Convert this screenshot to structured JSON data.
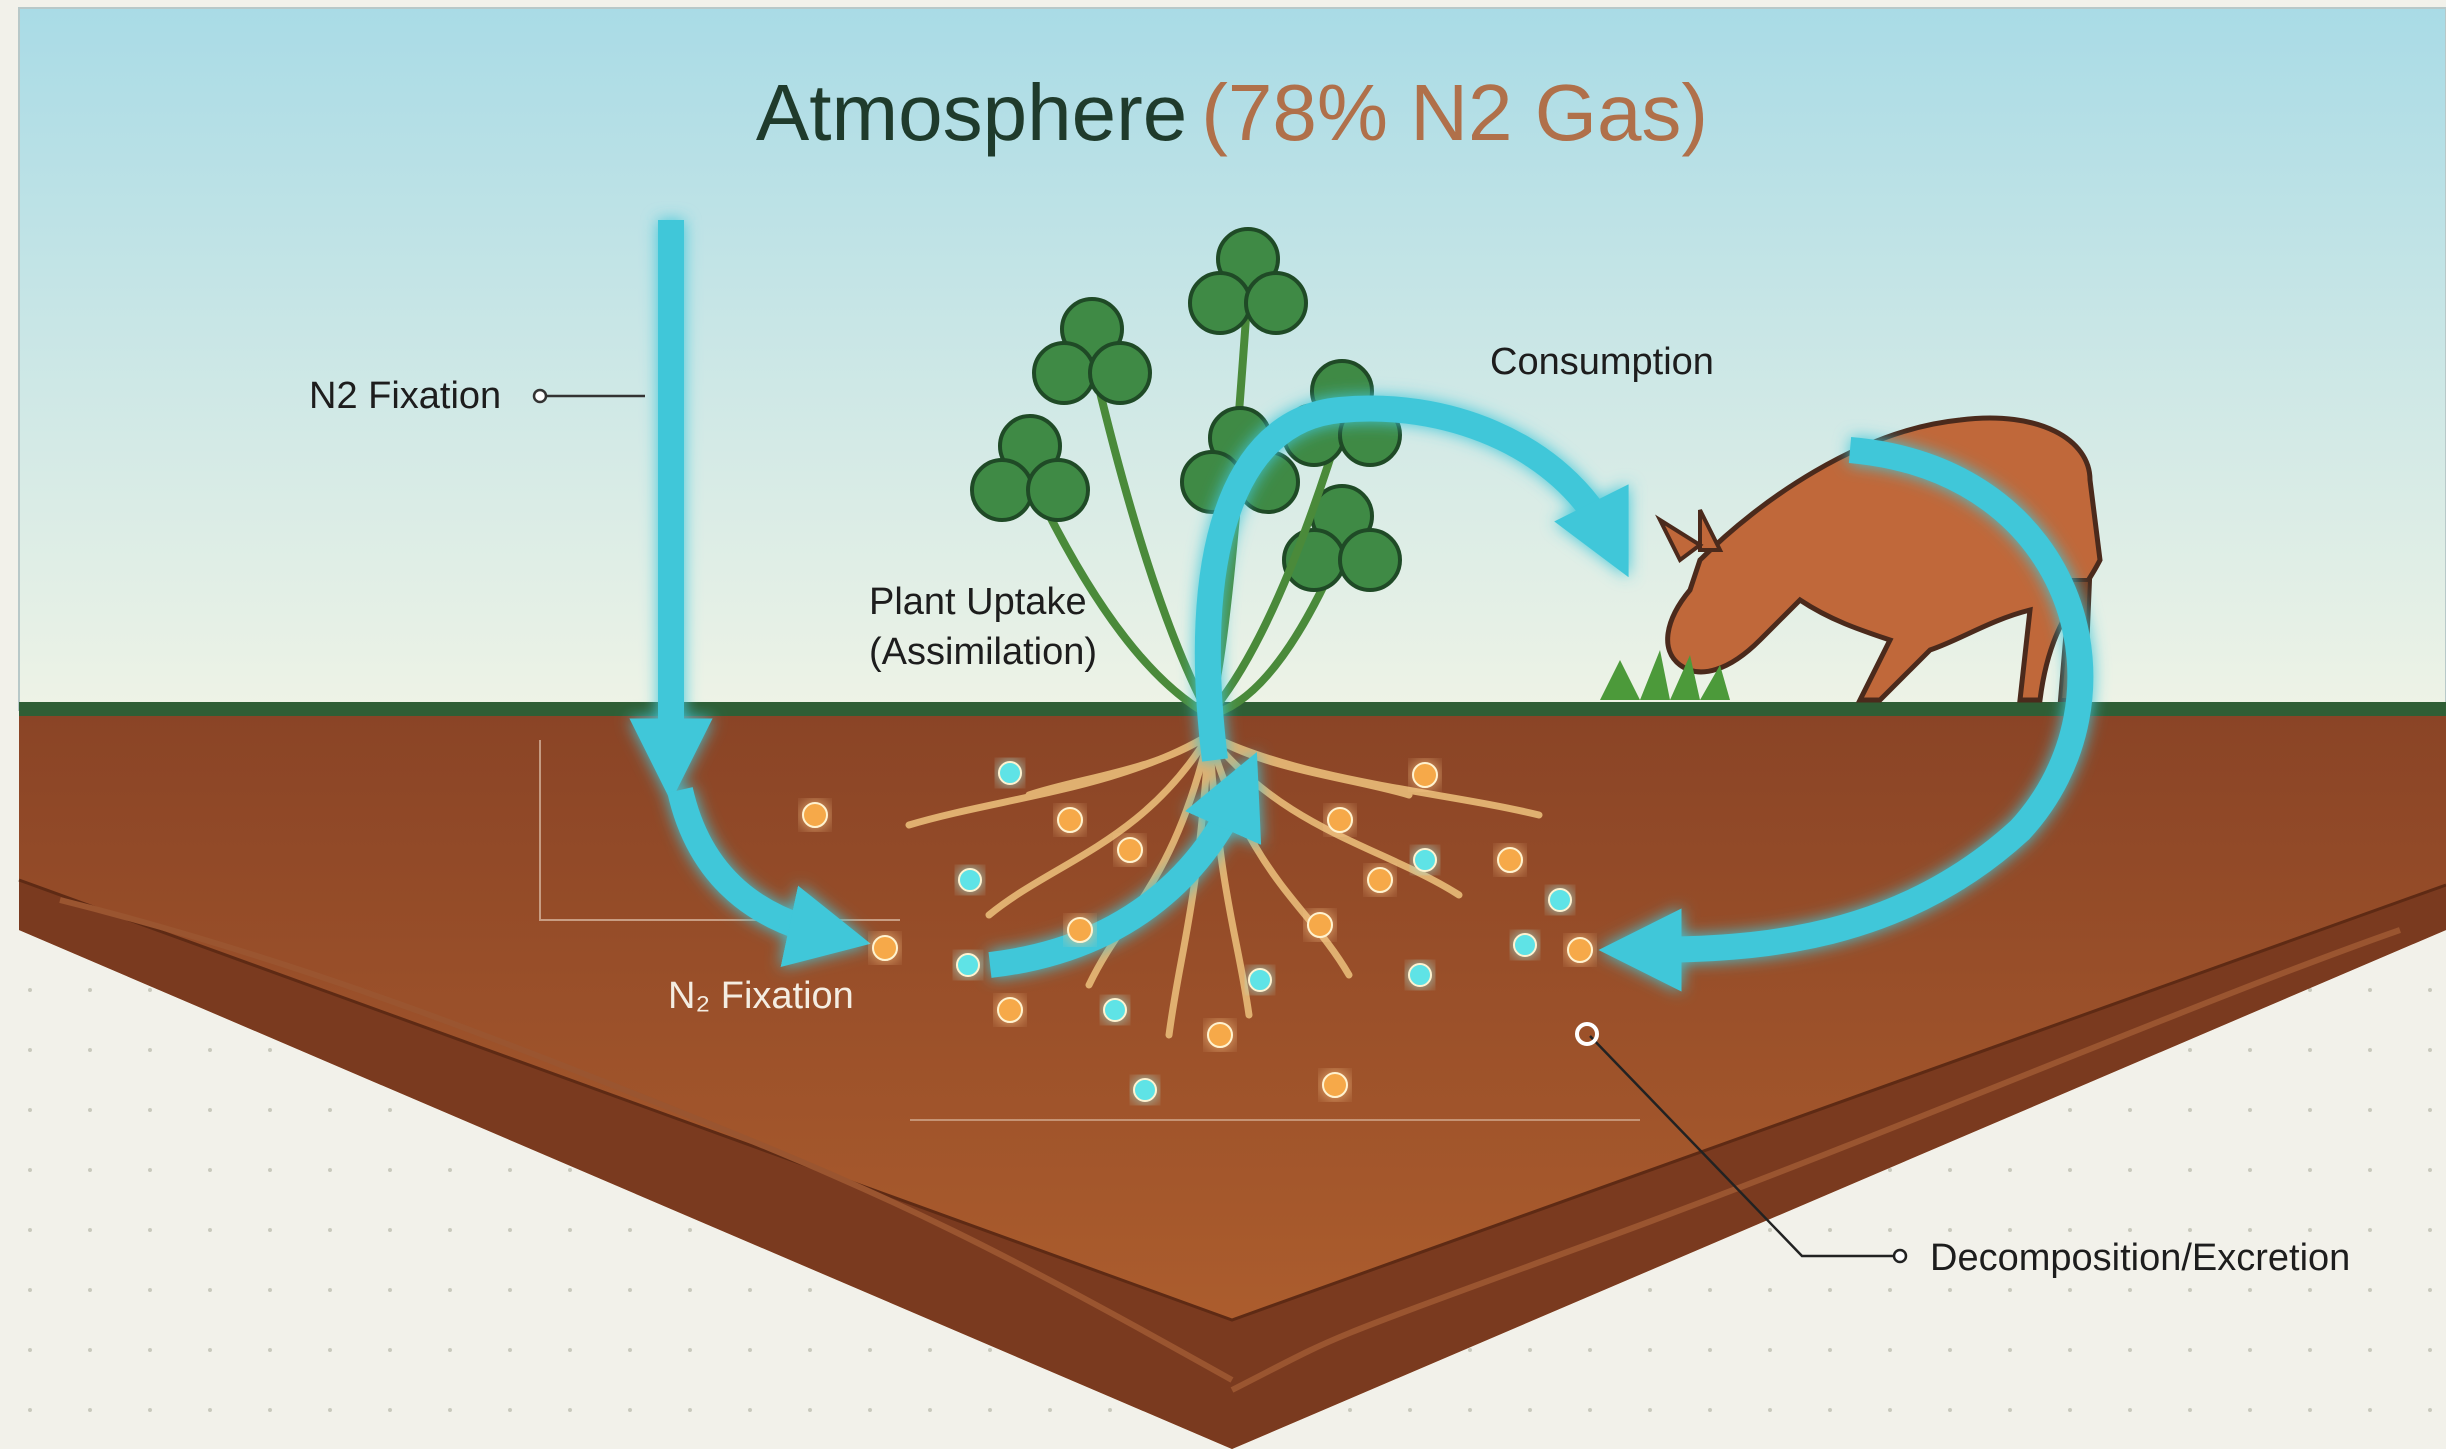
{
  "title": {
    "main": "Atmosphere",
    "highlight": "(78% N2 Gas)"
  },
  "labels": {
    "n2_fixation_air": "N2 Fixation",
    "consumption": "Consumption",
    "plant_uptake": "Plant Uptake",
    "assimilation": "(Assimilation)",
    "n2_fixation_soil": "N₂ Fixation",
    "decomposition": "Decomposition/Excretion"
  }
}
